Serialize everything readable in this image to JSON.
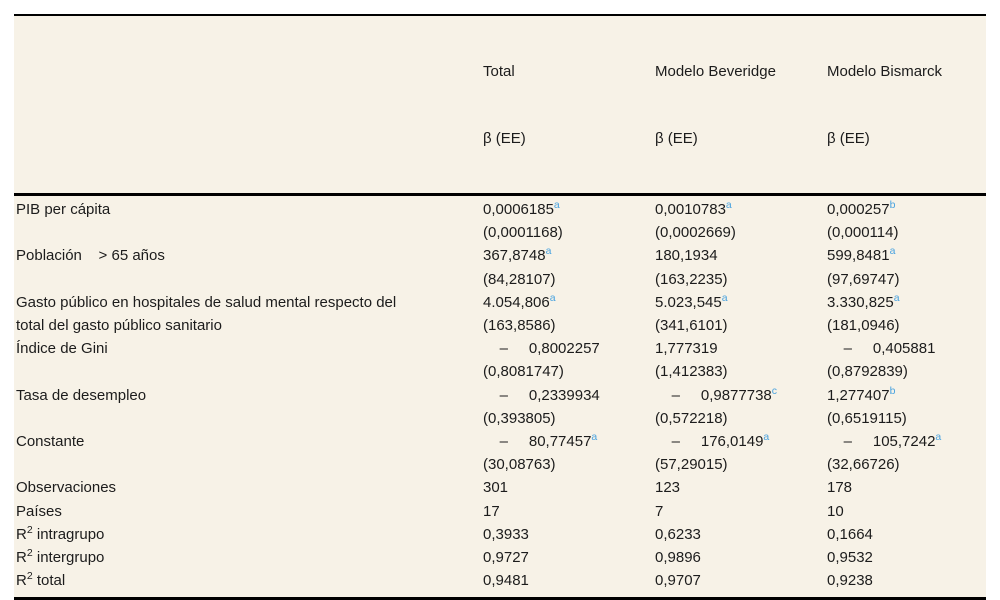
{
  "table": {
    "header": {
      "columns": [
        {
          "title": "Total",
          "sub": "β (EE)"
        },
        {
          "title": "Modelo Beveridge",
          "sub": "β (EE)"
        },
        {
          "title": "Modelo Bismarck",
          "sub": "β (EE)"
        }
      ]
    },
    "lines": [
      {
        "label": "PIB per cápita",
        "c1": "0,0006185",
        "s1": "a",
        "c2": "0,0010783",
        "s2": "a",
        "c3": "0,000257",
        "s3": "b"
      },
      {
        "label": "",
        "c1": "(0,0001168)",
        "c2": "(0,0002669)",
        "c3": "(0,000114)"
      },
      {
        "label": "Población    > 65 años",
        "c1": "367,8748",
        "s1": "a",
        "c2": "180,1934",
        "c3": "599,8481",
        "s3": "a"
      },
      {
        "label": "",
        "c1": "(84,28107)",
        "c2": "(163,2235)",
        "c3": "(97,69747)"
      },
      {
        "label": "Gasto público en hospitales de salud mental respecto del",
        "c1": "4.054,806",
        "s1": "a",
        "c2": "5.023,545",
        "s2": "a",
        "c3": "3.330,825",
        "s3": "a"
      },
      {
        "label": "total del gasto público sanitario",
        "c1": "(163,8586)",
        "c2": "(341,6101)",
        "c3": "(181,0946)"
      },
      {
        "label": "Índice de Gini",
        "c1": "    –     0,8002257",
        "c2": "1,777319",
        "c3": "    –     0,405881"
      },
      {
        "label": "",
        "c1": "(0,8081747)",
        "c2": "(1,412383)",
        "c3": "(0,8792839)"
      },
      {
        "label": "Tasa de desempleo",
        "c1": "    –     0,2339934",
        "c2": "    –     0,9877738",
        "s2": "c",
        "c3": "1,277407",
        "s3": "b"
      },
      {
        "label": "",
        "c1": "(0,393805)",
        "c2": "(0,572218)",
        "c3": "(0,6519115)"
      },
      {
        "label": "Constante",
        "c1": "    –     80,77457",
        "s1": "a",
        "c2": "    –     176,0149",
        "s2": "a",
        "c3": "    –     105,7242",
        "s3": "a"
      },
      {
        "label": "",
        "c1": "(30,08763)",
        "c2": "(57,29015)",
        "c3": "(32,66726)"
      },
      {
        "label": "Observaciones",
        "c1": "301",
        "c2": "123",
        "c3": "178"
      },
      {
        "label": "Países",
        "c1": "17",
        "c2": "7",
        "c3": "10"
      },
      {
        "label": "R",
        "label_sup": "2",
        "label_rest": " intragrupo",
        "c1": "0,3933",
        "c2": "0,6233",
        "c3": "0,1664"
      },
      {
        "label": "R",
        "label_sup": "2",
        "label_rest": " intergrupo",
        "c1": "0,9727",
        "c2": "0,9896",
        "c3": "0,9532"
      },
      {
        "label": "R",
        "label_sup": "2",
        "label_rest": " total",
        "c1": "0,9481",
        "c2": "0,9707",
        "c3": "0,9238"
      }
    ]
  }
}
